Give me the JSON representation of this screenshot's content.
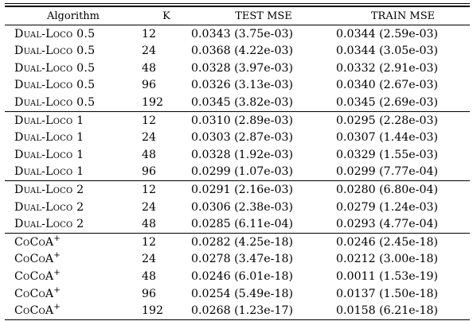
{
  "table": {
    "headers": {
      "algorithm": "Algorithm",
      "k": "K",
      "test": "TEST MSE",
      "train": "TRAIN MSE"
    },
    "groups": [
      {
        "rows": [
          {
            "algo": "Dual-Loco 0.5",
            "sup": "",
            "k": "12",
            "test": "0.0343 (3.75e-03)",
            "train": "0.0344 (2.59e-03)"
          },
          {
            "algo": "Dual-Loco 0.5",
            "sup": "",
            "k": "24",
            "test": "0.0368 (4.22e-03)",
            "train": "0.0344 (3.05e-03)"
          },
          {
            "algo": "Dual-Loco 0.5",
            "sup": "",
            "k": "48",
            "test": "0.0328 (3.97e-03)",
            "train": "0.0332 (2.91e-03)"
          },
          {
            "algo": "Dual-Loco 0.5",
            "sup": "",
            "k": "96",
            "test": "0.0326 (3.13e-03)",
            "train": "0.0340 (2.67e-03)"
          },
          {
            "algo": "Dual-Loco 0.5",
            "sup": "",
            "k": "192",
            "test": "0.0345 (3.82e-03)",
            "train": "0.0345 (2.69e-03)"
          }
        ]
      },
      {
        "rows": [
          {
            "algo": "Dual-Loco 1",
            "sup": "",
            "k": "12",
            "test": "0.0310 (2.89e-03)",
            "train": "0.0295 (2.28e-03)"
          },
          {
            "algo": "Dual-Loco 1",
            "sup": "",
            "k": "24",
            "test": "0.0303 (2.87e-03)",
            "train": "0.0307 (1.44e-03)"
          },
          {
            "algo": "Dual-Loco 1",
            "sup": "",
            "k": "48",
            "test": "0.0328 (1.92e-03)",
            "train": "0.0329 (1.55e-03)"
          },
          {
            "algo": "Dual-Loco 1",
            "sup": "",
            "k": "96",
            "test": "0.0299 (1.07e-03)",
            "train": "0.0299 (7.77e-04)"
          }
        ]
      },
      {
        "rows": [
          {
            "algo": "Dual-Loco 2",
            "sup": "",
            "k": "12",
            "test": "0.0291 (2.16e-03)",
            "train": "0.0280 (6.80e-04)"
          },
          {
            "algo": "Dual-Loco 2",
            "sup": "",
            "k": "24",
            "test": "0.0306 (2.38e-03)",
            "train": "0.0279 (1.24e-03)"
          },
          {
            "algo": "Dual-Loco 2",
            "sup": "",
            "k": "48",
            "test": "0.0285 (6.11e-04)",
            "train": "0.0293 (4.77e-04)"
          }
        ]
      },
      {
        "rows": [
          {
            "algo": "CoCoA",
            "sup": "+",
            "k": "12",
            "test": "0.0282 (4.25e-18)",
            "train": "0.0246 (2.45e-18)"
          },
          {
            "algo": "CoCoA",
            "sup": "+",
            "k": "24",
            "test": "0.0278 (3.47e-18)",
            "train": "0.0212 (3.00e-18)"
          },
          {
            "algo": "CoCoA",
            "sup": "+",
            "k": "48",
            "test": "0.0246 (6.01e-18)",
            "train": "0.0011 (1.53e-19)"
          },
          {
            "algo": "CoCoA",
            "sup": "+",
            "k": "96",
            "test": "0.0254 (5.49e-18)",
            "train": "0.0137 (1.50e-18)"
          },
          {
            "algo": "CoCoA",
            "sup": "+",
            "k": "192",
            "test": "0.0268 (1.23e-17)",
            "train": "0.0158 (6.21e-18)"
          }
        ]
      }
    ]
  }
}
